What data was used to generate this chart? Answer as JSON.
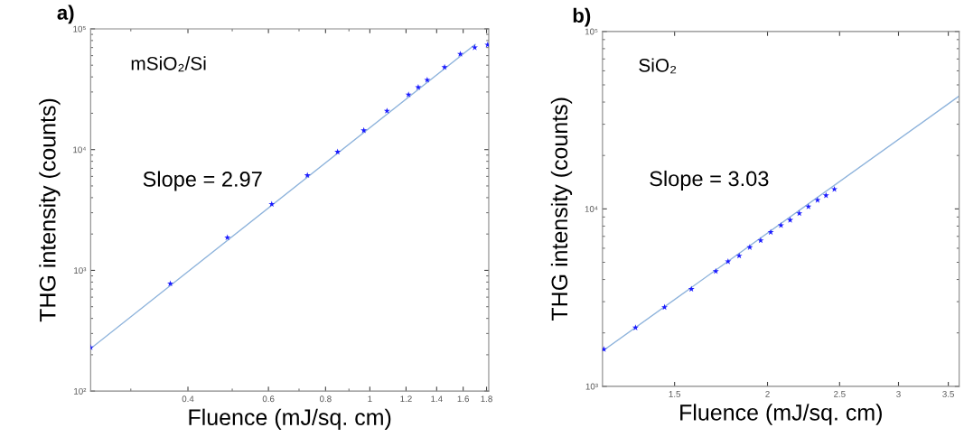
{
  "chart_data": [
    {
      "type": "scatter",
      "annotations": [
        "a)",
        "mSiO₂/Si",
        "Slope = 2.97"
      ],
      "xlabel": "Fluence (mJ/sq. cm)",
      "ylabel": "THG intensity (counts)",
      "log": "xy",
      "xlim": [
        0.245,
        1.82
      ],
      "ylim": [
        100,
        100000
      ],
      "xticks": [
        0.4,
        0.6,
        0.8,
        1,
        1.2,
        1.4,
        1.6,
        1.8
      ],
      "yticks": [
        {
          "value": 100,
          "label": "10²"
        },
        {
          "value": 1000,
          "label": "10³"
        },
        {
          "value": 10000,
          "label": "10⁴"
        },
        {
          "value": 100000,
          "label": "10⁵"
        }
      ],
      "grid": false,
      "legend": false,
      "series": [
        {
          "marker": "star",
          "color": "#1a1aff",
          "x": [
            0.245,
            0.366,
            0.488,
            0.61,
            0.73,
            0.85,
            0.97,
            1.09,
            1.215,
            1.276,
            1.335,
            1.457,
            1.577,
            1.696,
            1.81
          ],
          "values": [
            230,
            776,
            1870,
            3530,
            6120,
            9570,
            14400,
            20900,
            28500,
            32800,
            37700,
            48100,
            61800,
            70000,
            73800
          ]
        },
        {
          "type": "line",
          "marker": "none",
          "line_style": "solid",
          "color": "#8fb4dc",
          "x": [
            0.245,
            1.7
          ],
          "values": [
            225,
            74300
          ]
        }
      ]
    },
    {
      "type": "scatter",
      "annotations": [
        "b)",
        "SiO₂",
        "Slope = 3.03"
      ],
      "xlabel": "Fluence (mJ/sq. cm)",
      "ylabel": "THG intensity (counts)",
      "log": "xy",
      "xlim": [
        1.2,
        3.62
      ],
      "ylim": [
        1000,
        100000
      ],
      "xticks": [
        1.5,
        2,
        2.5,
        3,
        3.5
      ],
      "yticks": [
        {
          "value": 1000,
          "label": "10³"
        },
        {
          "value": 10000,
          "label": "10⁴"
        },
        {
          "value": 100000,
          "label": "10⁵"
        }
      ],
      "grid": false,
      "legend": false,
      "series": [
        {
          "marker": "star",
          "color": "#1a1aff",
          "x": [
            1.205,
            1.329,
            1.454,
            1.58,
            1.704,
            1.77,
            1.832,
            1.893,
            1.958,
            2.02,
            2.085,
            2.145,
            2.207,
            2.27,
            2.335,
            2.397,
            2.46
          ],
          "values": [
            1616,
            2140,
            2790,
            3530,
            4450,
            5050,
            5440,
            6070,
            6640,
            7390,
            8070,
            8650,
            9440,
            10300,
            11200,
            11900,
            12900
          ]
        },
        {
          "type": "line",
          "marker": "none",
          "line_style": "solid",
          "color": "#8fb4dc",
          "x": [
            1.205,
            3.61
          ],
          "values": [
            1600,
            42900
          ]
        }
      ]
    }
  ]
}
